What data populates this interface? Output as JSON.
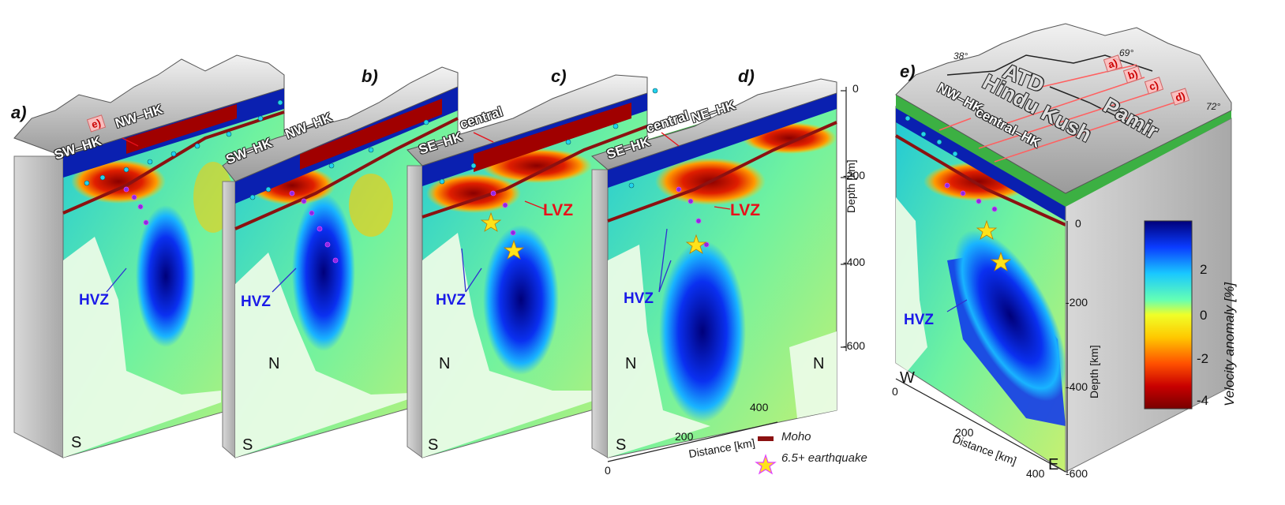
{
  "panels": {
    "a": {
      "label": "a)",
      "sections": [
        "SW–HK",
        "NW–HK"
      ],
      "tag": "e)",
      "hvz": "HVZ",
      "compass": [
        "S"
      ]
    },
    "b": {
      "label": "b)",
      "sections": [
        "SW–HK",
        "NW–HK"
      ],
      "hvz": "HVZ",
      "compass": [
        "S",
        "N"
      ]
    },
    "c": {
      "label": "c)",
      "sections": [
        "SE–HK",
        "central"
      ],
      "hvz": "HVZ",
      "lvz": "LVZ",
      "compass": [
        "S",
        "N"
      ]
    },
    "d": {
      "label": "d)",
      "sections": [
        "SE–HK",
        "central",
        "NE–HK"
      ],
      "hvz": "HVZ",
      "lvz": "LVZ",
      "compass": [
        "S",
        "N",
        "N"
      ]
    },
    "e": {
      "label": "e)",
      "sections": [
        "NW–HK",
        "central–HK"
      ],
      "tags": [
        "a)",
        "b)",
        "c)",
        "d)"
      ],
      "hvz": "HVZ",
      "compass": [
        "W",
        "E"
      ],
      "geo": [
        "ATD",
        "Hindu Kush",
        "Pamir"
      ],
      "degrees": [
        "38°",
        "69°",
        "72°"
      ]
    }
  },
  "depth_axis_left": {
    "title": "Depth [km]",
    "ticks": [
      "0",
      "-200",
      "-400",
      "-600"
    ]
  },
  "distance_axis_left": {
    "title": "Distance [km]",
    "ticks": [
      "0",
      "200",
      "400"
    ]
  },
  "depth_axis_right": {
    "title": "Depth [km]",
    "ticks": [
      "0",
      "-200",
      "-400",
      "-600"
    ]
  },
  "distance_axis_right": {
    "title": "Distance [km]",
    "ticks": [
      "0",
      "200",
      "400"
    ]
  },
  "colorbar": {
    "title": "Velocity anomaly [%]",
    "ticks": [
      "2",
      "0",
      "-2",
      "-4"
    ],
    "colors": [
      "#00007a",
      "#0a3cff",
      "#19c8ff",
      "#64ffb4",
      "#f0ff28",
      "#ffc800",
      "#ff5000",
      "#c80000",
      "#780000"
    ]
  },
  "legend": {
    "moho": "Moho",
    "earthquake": "6.5+ earthquake"
  },
  "colors": {
    "moho": "#8b1111",
    "seismicity": "#8a2be2",
    "cyan_events": "#22d3ee",
    "star": "#ffe21a",
    "plate": "#3cb043"
  }
}
